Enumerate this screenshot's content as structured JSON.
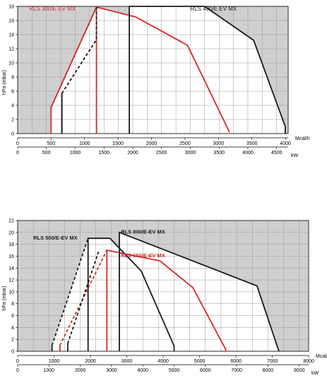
{
  "chart_data": [
    {
      "type": "line",
      "ylabel": "hPa (mbar)",
      "x_unit_top": "Mcal/h",
      "x_unit_bottom": "kW",
      "ylim": [
        0,
        18
      ],
      "yticks": [
        0,
        2,
        4,
        6,
        8,
        10,
        12,
        14,
        16,
        18
      ],
      "xlim_kw": [
        0,
        4700
      ],
      "xticks_kw": [
        0,
        500,
        1000,
        1500,
        2000,
        2500,
        3000,
        3500,
        4000,
        4500
      ],
      "xticks_mcal": [
        0,
        500,
        1000,
        1500,
        2000,
        2500,
        3000,
        3500,
        4000
      ],
      "grid": true,
      "series": [
        {
          "name": "RLS 300/E EV MX",
          "color": "#d42a2a",
          "label_x": 200,
          "label_y": 17.4,
          "outline": [
            [
              580,
              0
            ],
            [
              580,
              3.7
            ],
            [
              1370,
              17.9
            ],
            [
              2050,
              16.5
            ],
            [
              2950,
              12.5
            ],
            [
              3680,
              0.2
            ]
          ],
          "dashed": [
            [
              580,
              3.7
            ],
            [
              1370,
              17.9
            ]
          ],
          "min_line": [
            [
              1370,
              0
            ],
            [
              1370,
              17.9
            ]
          ]
        },
        {
          "name": "RLS 400/E EV MX",
          "color": "#1a1a1a",
          "label_x": 3000,
          "label_y": 17.4,
          "outline": [
            [
              1940,
              0
            ],
            [
              1940,
              18
            ],
            [
              3250,
              18
            ],
            [
              4100,
              13.2
            ],
            [
              4650,
              1
            ],
            [
              4650,
              0
            ]
          ],
          "dashed": [
            [
              770,
              5.7
            ],
            [
              1370,
              13.3
            ],
            [
              1370,
              17.9
            ]
          ],
          "min_line": [
            [
              770,
              0
            ],
            [
              770,
              5.7
            ]
          ]
        }
      ]
    },
    {
      "type": "line",
      "ylabel": "hPa (mbar)",
      "x_unit_top": "Mcal/h",
      "x_unit_bottom": "kW",
      "ylim": [
        0,
        22
      ],
      "yticks": [
        0,
        2,
        4,
        6,
        8,
        10,
        12,
        14,
        16,
        18,
        20,
        22
      ],
      "xlim_kw": [
        0,
        9300
      ],
      "xticks_kw": [
        0,
        1000,
        2000,
        3000,
        4000,
        5000,
        6000,
        7000,
        8000,
        9000
      ],
      "xticks_mcal": [
        0,
        1000,
        2000,
        3000,
        4000,
        5000,
        6000,
        7000,
        8000
      ],
      "grid": true,
      "series": [
        {
          "name": "RLS 500/E-EV MX",
          "color": "#1a1a1a",
          "label_x": 500,
          "label_y": 18.8,
          "outline": [
            [
              2250,
              0
            ],
            [
              2250,
              19
            ],
            [
              2950,
              19
            ],
            [
              3950,
              13.5
            ],
            [
              5000,
              0.9
            ],
            [
              5000,
              0
            ]
          ],
          "dashed": [
            [
              1100,
              1
            ],
            [
              2250,
              19
            ]
          ],
          "min_line": [
            [
              1100,
              0
            ],
            [
              1100,
              1
            ]
          ]
        },
        {
          "name": "RLS 650/E-EV MX",
          "color": "#d42a2a",
          "label_x": 3300,
          "label_y": 15.8,
          "outline": [
            [
              2850,
              0
            ],
            [
              2850,
              17
            ],
            [
              4550,
              15.2
            ],
            [
              5600,
              10.7
            ],
            [
              6650,
              0.3
            ],
            [
              6650,
              0
            ]
          ],
          "dashed": [
            [
              1350,
              1
            ],
            [
              2850,
              17
            ]
          ],
          "min_line": [
            [
              1350,
              0
            ],
            [
              1350,
              1
            ]
          ]
        },
        {
          "name": "RLS 800/E-EV MX",
          "color": "#1a1a1a",
          "label_x": 3300,
          "label_y": 19.8,
          "outline": [
            [
              3250,
              0
            ],
            [
              3250,
              20
            ],
            [
              7650,
              11
            ],
            [
              8350,
              0
            ]
          ],
          "dashed": [
            [
              1600,
              1.3
            ],
            [
              2600,
              17
            ]
          ],
          "min_line": [
            [
              1600,
              0
            ],
            [
              1600,
              1.3
            ]
          ]
        }
      ]
    }
  ]
}
